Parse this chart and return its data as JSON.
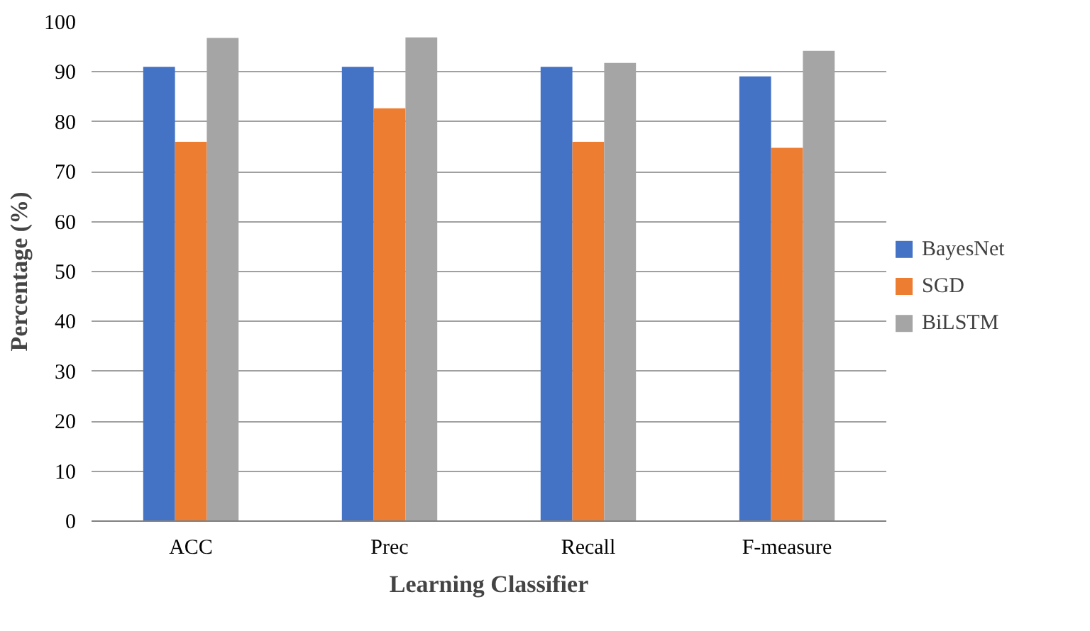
{
  "chart_data": {
    "type": "bar",
    "xlabel": "Learning Classifier",
    "ylabel": "Percentage (%)",
    "categories": [
      "ACC",
      "Prec",
      "Recall",
      "F-measure"
    ],
    "series": [
      {
        "name": "BayesNet",
        "color": "#4472c4",
        "values": [
          91,
          91,
          91,
          89.1
        ]
      },
      {
        "name": "SGD",
        "color": "#ed7d31",
        "values": [
          76,
          82.7,
          76,
          74.8
        ]
      },
      {
        "name": "BiLSTM",
        "color": "#a5a5a5",
        "values": [
          96.8,
          96.9,
          91.8,
          94.2
        ]
      }
    ],
    "ylim": [
      0,
      100
    ],
    "yticks": [
      0,
      10,
      20,
      30,
      40,
      50,
      60,
      70,
      80,
      90,
      100
    ],
    "grid": "y",
    "legend": "right"
  }
}
